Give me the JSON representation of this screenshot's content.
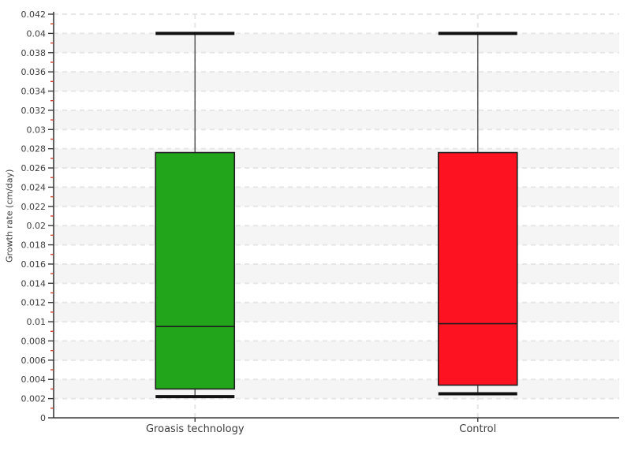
{
  "chart_data": {
    "type": "boxplot",
    "title": "",
    "ylabel": "Growth rate (cm/day)",
    "xlabel": "",
    "ylim": [
      0,
      0.042
    ],
    "ytick_step": 0.002,
    "y_tick_labels": [
      "0",
      "0.002",
      "0.004",
      "0.006",
      "0.008",
      "0.01",
      "0.012",
      "0.014",
      "0.016",
      "0.018",
      "0.02",
      "0.022",
      "0.024",
      "0.026",
      "0.028",
      "0.03",
      "0.032",
      "0.034",
      "0.036",
      "0.038",
      "0.04",
      "0.042"
    ],
    "categories": [
      "Groasis technology",
      "Control"
    ],
    "series": [
      {
        "name": "Groasis technology",
        "color": "#22a51b",
        "whisker_low": 0.0022,
        "q1": 0.003,
        "median": 0.0095,
        "q3": 0.0276,
        "whisker_high": 0.04
      },
      {
        "name": "Control",
        "color": "#fc1221",
        "whisker_low": 0.0025,
        "q1": 0.0034,
        "median": 0.0098,
        "q3": 0.0276,
        "whisker_high": 0.04
      }
    ],
    "grid": {
      "horizontal": "dashed line at every 0.002",
      "vertical": "dashed line at each category center",
      "zebra_bands": true
    },
    "legend_position": "none"
  },
  "colors": {
    "background": "#ffffff",
    "band": "#f5f5f6",
    "grid": "#e6e6e6",
    "axis": "#3a3a3a",
    "minor_tick": "#cc4331",
    "whisker": "#5a5a5a",
    "cap": "#111111",
    "box_border": "#1f1f1f",
    "text": "#3d3d3d"
  }
}
